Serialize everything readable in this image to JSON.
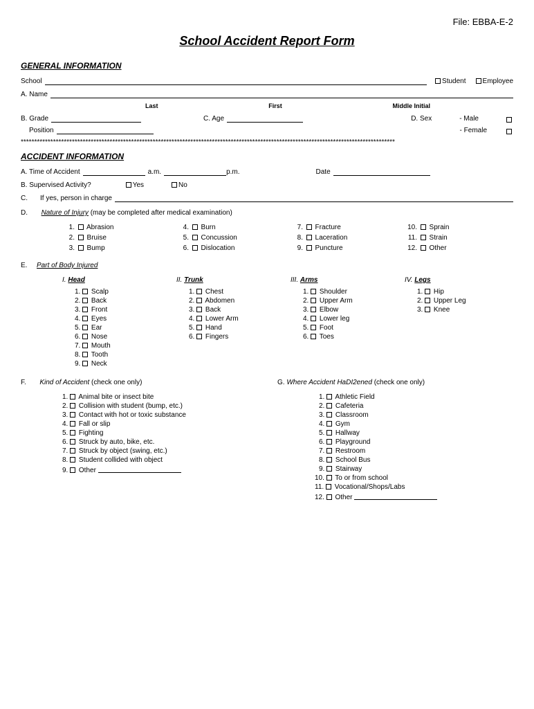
{
  "file_label": "File: EBBA-E-2",
  "title": "School Accident Report Form",
  "general": {
    "header": "GENERAL INFORMATION",
    "school_label": "School",
    "student": "Student",
    "employee": "Employee",
    "name_label": "A. Name",
    "last": "Last",
    "first": "First",
    "middle": "Middle Initial",
    "grade_label": "B. Grade",
    "position_label": "Position",
    "age_label": "C. Age",
    "sex_label": "D. Sex",
    "male": "- Male",
    "female": "- Female"
  },
  "accident": {
    "header": "ACCIDENT INFORMATION",
    "time_label": "A. Time of Accident",
    "am": "a.m.",
    "pm": "p.m.",
    "date_label": "Date",
    "supervised_label": "B. Supervised Activity?",
    "yes": "Yes",
    "no": "No",
    "c_label": "C.",
    "person_in_charge": "If yes, person in charge",
    "d_label": "D.",
    "nature_label": "Nature of Injury",
    "nature_note": "(may be completed after medical examination)",
    "nature": [
      "Abrasion",
      "Bruise",
      "Bump",
      "Burn",
      "Concussion",
      "Dislocation",
      "Fracture",
      "Laceration",
      "Puncture",
      "Sprain",
      "Strain",
      "Other"
    ],
    "e_label": "E.",
    "part_label": "Part of Body Injured",
    "body": {
      "head": {
        "roman": "I.",
        "title": "Head",
        "items": [
          "Scalp",
          "Back",
          "Front",
          "Eyes",
          "Ear",
          "Nose",
          "Mouth",
          "Tooth",
          "Neck"
        ]
      },
      "trunk": {
        "roman": "II.",
        "title": "Trunk",
        "items": [
          "Chest",
          "Abdomen",
          "Back",
          "Lower Arm",
          "Hand",
          "Fingers"
        ]
      },
      "arms": {
        "roman": "III.",
        "title": "Arms",
        "items": [
          "Shoulder",
          "Upper Arm",
          "Elbow",
          "Lower leg",
          "Foot",
          "Toes"
        ]
      },
      "legs": {
        "roman": "IV.",
        "title": "Legs",
        "items": [
          "Hip",
          "Upper Leg",
          "Knee"
        ]
      }
    },
    "f_label": "F.",
    "kind_label": "Kind of Accident",
    "check_one": "(check one only)",
    "kinds": [
      "Animal bite or insect bite",
      "Collision with student (bump, etc.)",
      "Contact with hot or toxic substance",
      "Fall or slip",
      "Fighting",
      "Struck by auto, bike, etc.",
      "Struck by object (swing, etc.)",
      "Student collided with object",
      "Other"
    ],
    "g_label": "G.",
    "where_label": "Where Accident HaDI2ened",
    "wheres": [
      "Athletic Field",
      "Cafeteria",
      "Classroom",
      "Gym",
      "Hallway",
      "Playground",
      "Restroom",
      "School Bus",
      "Stairway",
      "To or from school",
      "Vocational/Shops/Labs",
      "Other"
    ]
  }
}
